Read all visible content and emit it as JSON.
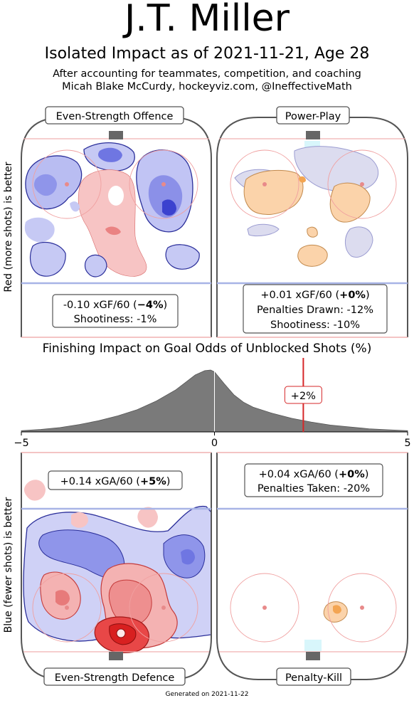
{
  "header": {
    "title": "J.T. Miller",
    "subtitle": "Isolated Impact as of 2021-11-21, Age 28",
    "caption_line1": "After accounting for teammates, competition, and coaching",
    "caption_line2": "Micah Blake McCurdy, hockeyviz.com, @IneffectiveMath"
  },
  "side_labels": {
    "top": "Red (more shots) is better",
    "bottom": "Blue (fewer shots) is better"
  },
  "panels": {
    "ev_offence": {
      "label": "Even-Strength Offence",
      "stat_prefix": "-0.10 xGF/60 (",
      "stat_bold": "−4%",
      "stat_suffix": ")",
      "line2": "Shootiness: -1%"
    },
    "power_play": {
      "label": "Power-Play",
      "stat_prefix": "+0.01 xGF/60 (",
      "stat_bold": "+0%",
      "stat_suffix": ")",
      "line2": "Penalties Drawn: -12%",
      "line3": "Shootiness: -10%"
    },
    "ev_defence": {
      "label": "Even-Strength Defence",
      "stat_prefix": "+0.14 xGA/60 (",
      "stat_bold": "+5%",
      "stat_suffix": ")"
    },
    "penalty_kill": {
      "label": "Penalty-Kill",
      "stat_prefix": "+0.04 xGA/60 (",
      "stat_bold": "+0%",
      "stat_suffix": ")",
      "line2": "Penalties Taken: -20%"
    }
  },
  "chart_data": {
    "type": "area",
    "title": "Finishing Impact on Goal Odds of Unblocked Shots (%)",
    "xlim": [
      -5,
      5
    ],
    "x_ticks": [
      -5,
      0,
      5
    ],
    "x_tick_labels": [
      "−5",
      "0",
      "5"
    ],
    "distribution": {
      "x": [
        -5,
        -4.5,
        -4,
        -3.5,
        -3,
        -2.5,
        -2,
        -1.5,
        -1,
        -0.75,
        -0.5,
        -0.25,
        -0.1,
        0,
        0.25,
        0.5,
        0.75,
        1,
        1.5,
        2,
        2.5,
        3,
        3.5,
        4,
        4.5,
        5
      ],
      "y": [
        0.02,
        0.04,
        0.07,
        0.12,
        0.18,
        0.26,
        0.36,
        0.5,
        0.68,
        0.8,
        0.92,
        0.99,
        1.0,
        0.97,
        0.78,
        0.6,
        0.48,
        0.4,
        0.3,
        0.22,
        0.16,
        0.11,
        0.08,
        0.05,
        0.035,
        0.02
      ]
    },
    "marker_value": 2.3,
    "marker_label": "+2%",
    "colors": {
      "fill": "#7a7a7a",
      "marker": "#d62728"
    }
  },
  "footer": {
    "generated": "Generated on 2021-11-22"
  },
  "colors": {
    "more_shots": "#e8474b",
    "fewer_shots": "#4b4bdc",
    "pp_pk": "#f2a444"
  }
}
